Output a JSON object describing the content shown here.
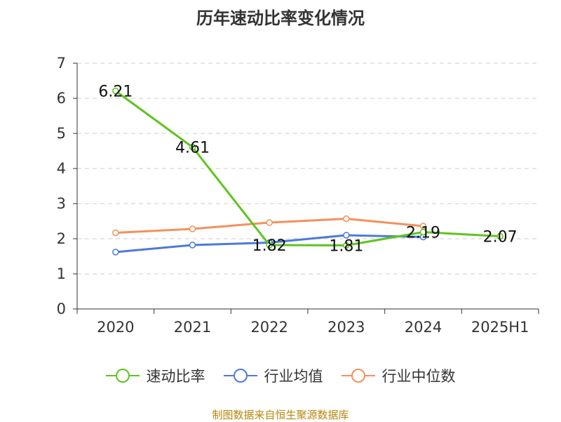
{
  "chart_data": {
    "type": "line",
    "title": "历年速动比率变化情况",
    "categories": [
      "2020",
      "2021",
      "2022",
      "2023",
      "2024",
      "2025H1"
    ],
    "ylim": [
      0,
      7
    ],
    "yticks": [
      "0",
      "1",
      "2",
      "3",
      "4",
      "5",
      "6",
      "7"
    ],
    "grid": true,
    "legend_position": "bottom",
    "series": [
      {
        "name": "速动比率",
        "color": "#5ec41e",
        "values": [
          6.21,
          4.61,
          1.82,
          1.81,
          2.19,
          2.07
        ],
        "labels": [
          "6.21",
          "4.61",
          "1.82",
          "1.81",
          "2.19",
          "2.07"
        ]
      },
      {
        "name": "行业均值",
        "color": "#4e79d8",
        "values": [
          1.62,
          1.82,
          1.89,
          2.1,
          2.05,
          null
        ]
      },
      {
        "name": "行业中位数",
        "color": "#f5915b",
        "values": [
          2.17,
          2.28,
          2.46,
          2.57,
          2.36,
          null
        ]
      }
    ]
  },
  "source_text": "制图数据来自恒生聚源数据库"
}
